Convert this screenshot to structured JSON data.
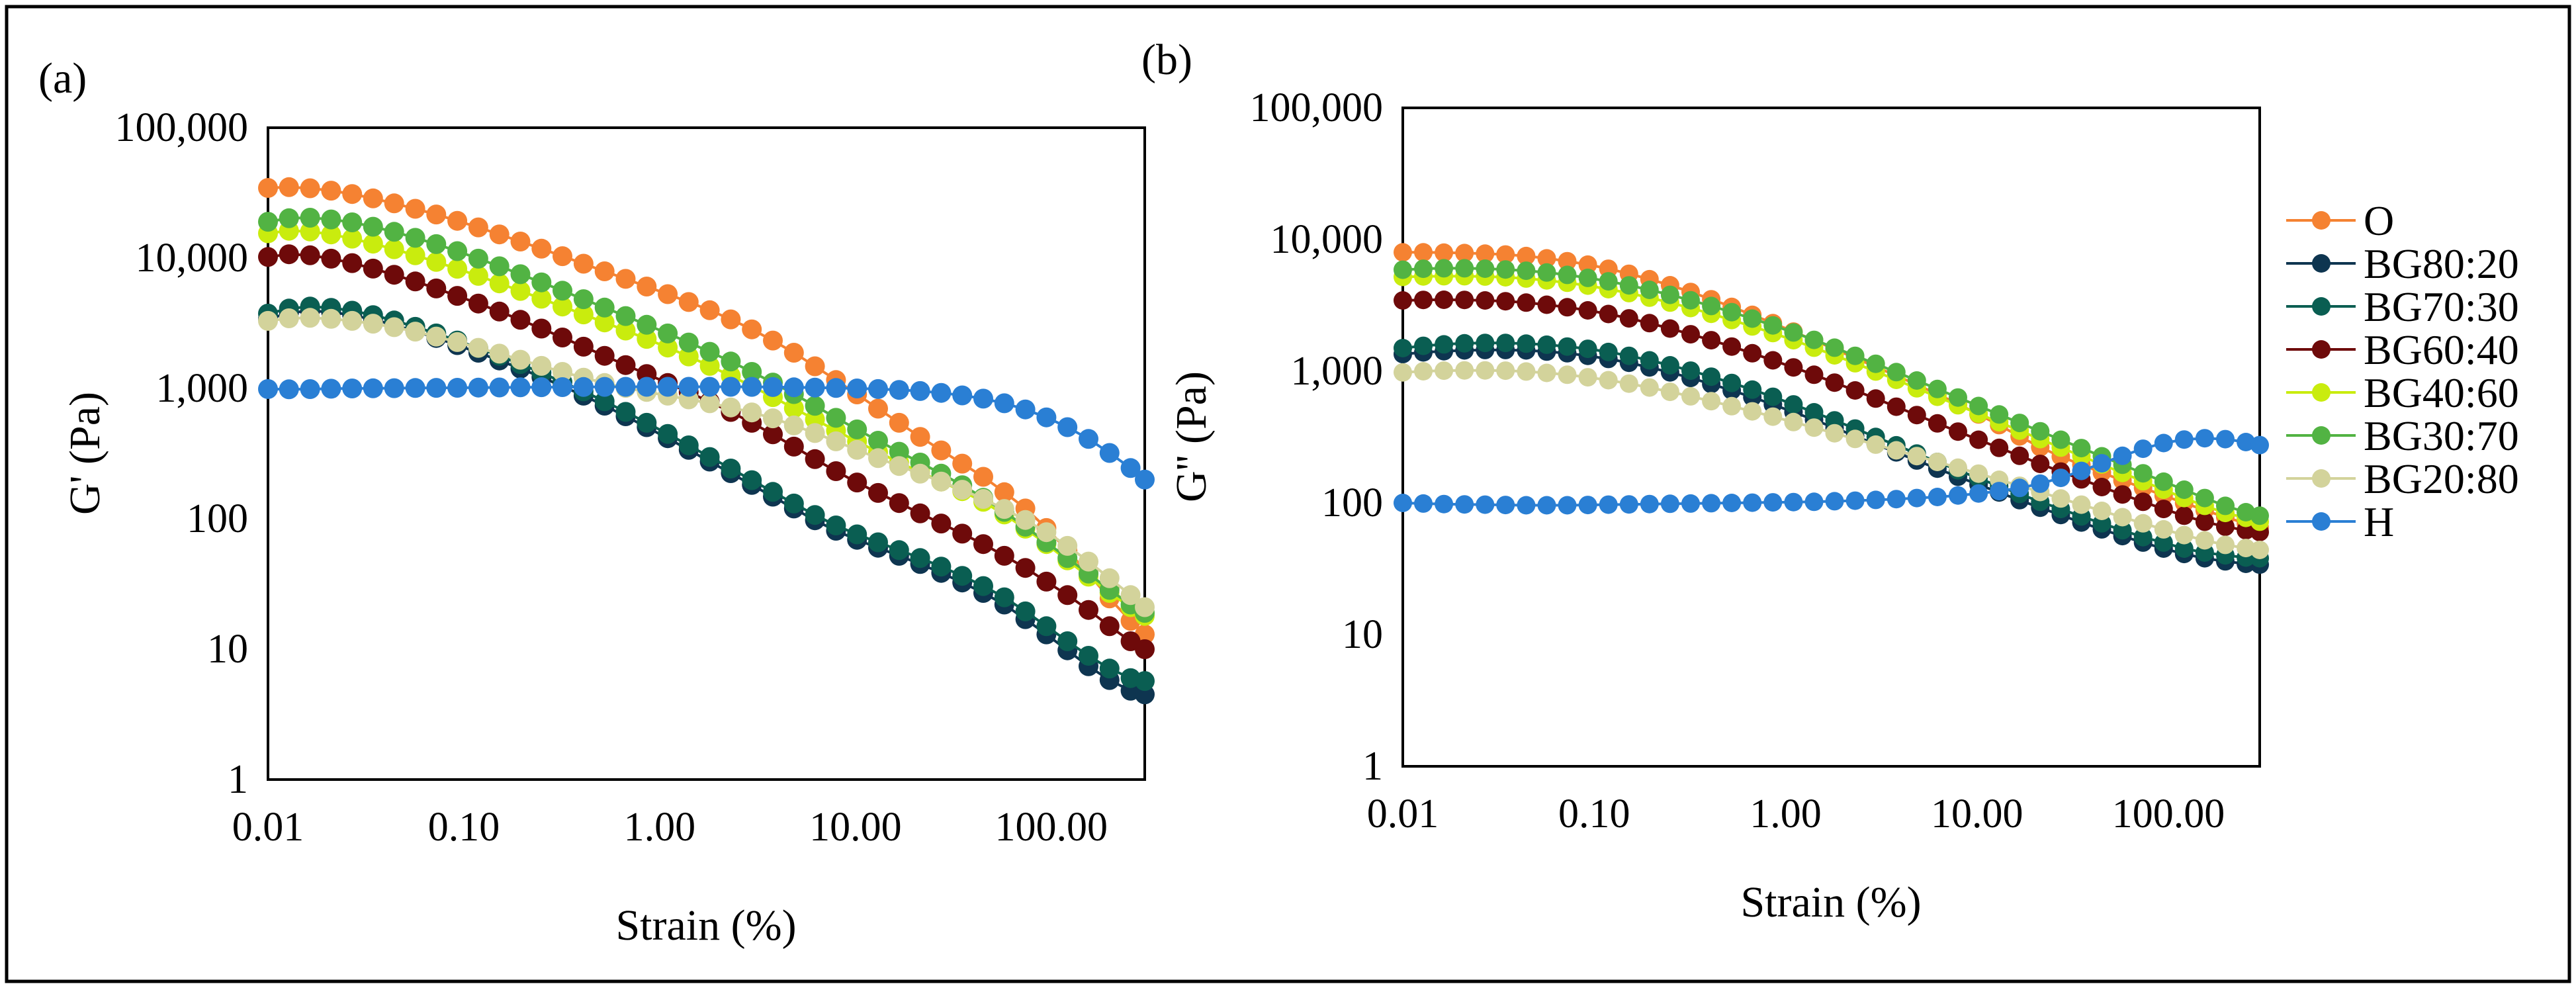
{
  "figure": {
    "panel_a_label": "(a)",
    "panel_b_label": "(b)"
  },
  "legend": {
    "items": [
      {
        "name": "O",
        "color": "#F58232"
      },
      {
        "name": "BG80:20",
        "color": "#0E3550"
      },
      {
        "name": "BG70:30",
        "color": "#0A5E52"
      },
      {
        "name": "BG60:40",
        "color": "#6E0A0A"
      },
      {
        "name": "BG40:60",
        "color": "#C9EC0E"
      },
      {
        "name": "BG30:70",
        "color": "#52B343"
      },
      {
        "name": "BG20:80",
        "color": "#D3D39B"
      },
      {
        "name": "H",
        "color": "#2A7FD4"
      }
    ]
  },
  "chart_data": [
    {
      "type": "scatter",
      "title": "",
      "xlabel": "Strain (%)",
      "ylabel": "G' (Pa)",
      "xscale": "log",
      "yscale": "log",
      "xlim": [
        0.01,
        300
      ],
      "ylim": [
        1,
        100000
      ],
      "xticks": [
        "0.01",
        "0.10",
        "1.00",
        "10.00",
        "100.00"
      ],
      "yticks": [
        "1",
        "10",
        "100",
        "1,000",
        "10,000",
        "100,000"
      ],
      "grid": false,
      "legend": "right",
      "x": [
        0.01,
        0.0128,
        0.0164,
        0.021,
        0.0269,
        0.0344,
        0.0441,
        0.0565,
        0.0723,
        0.0926,
        0.1186,
        0.1519,
        0.1945,
        0.2491,
        0.319,
        0.4086,
        0.5233,
        0.6702,
        0.8583,
        1.0992,
        1.4077,
        1.8028,
        2.3089,
        2.957,
        3.7869,
        4.8499,
        6.2112,
        7.9546,
        10.187,
        13.047,
        16.709,
        21.398,
        27.404,
        35.096,
        44.947,
        57.563,
        73.72,
        94.411,
        120.91,
        154.85,
        198.31,
        253.97,
        300.0
      ],
      "series": [
        {
          "name": "O",
          "color": "#F58232",
          "values": [
            34500,
            35000,
            34300,
            32900,
            31000,
            28700,
            26300,
            23900,
            21600,
            19300,
            17200,
            15200,
            13400,
            11800,
            10350,
            9050,
            7920,
            6930,
            6050,
            5290,
            4600,
            3980,
            3390,
            2840,
            2330,
            1880,
            1480,
            1160,
            900,
            700,
            545,
            425,
            335,
            265,
            210,
            160,
            120,
            85,
            57,
            38,
            24.5,
            16.5,
            13
          ]
        },
        {
          "name": "BG80:20",
          "color": "#0E3550",
          "values": [
            3400,
            3800,
            3950,
            3850,
            3650,
            3380,
            3070,
            2750,
            2440,
            2150,
            1880,
            1640,
            1420,
            1220,
            1040,
            880,
            738,
            612,
            505,
            415,
            338,
            275,
            224,
            182,
            148,
            120,
            97.5,
            81,
            69,
            60,
            52,
            45,
            38.5,
            32.5,
            27,
            22,
            17,
            13,
            9.8,
            7.4,
            5.8,
            4.8,
            4.5
          ]
        },
        {
          "name": "BG70:30",
          "color": "#0A5E52",
          "values": [
            3750,
            4100,
            4250,
            4150,
            3950,
            3650,
            3320,
            2970,
            2640,
            2330,
            2040,
            1780,
            1540,
            1320,
            1120,
            950,
            797,
            661,
            545,
            448,
            366,
            298,
            243,
            198,
            161,
            131,
            107,
            89,
            76,
            66,
            57.5,
            50,
            43,
            36.5,
            30.5,
            25,
            19.5,
            15,
            11.5,
            8.9,
            7.1,
            6,
            5.7
          ]
        },
        {
          "name": "BG60:40",
          "color": "#6E0A0A",
          "values": [
            10200,
            10700,
            10500,
            9900,
            9150,
            8300,
            7450,
            6620,
            5850,
            5130,
            4480,
            3890,
            3360,
            2880,
            2460,
            2090,
            1780,
            1510,
            1290,
            1100,
            935,
            790,
            660,
            545,
            445,
            358,
            287,
            232,
            190,
            158,
            132,
            110,
            92,
            77,
            64,
            52,
            42,
            33,
            26,
            20,
            15,
            11.5,
            10
          ]
        },
        {
          "name": "BG40:60",
          "color": "#C9EC0E",
          "values": [
            15500,
            16200,
            16000,
            15200,
            14100,
            12900,
            11700,
            10500,
            9350,
            8280,
            7300,
            6400,
            5600,
            4880,
            4250,
            3700,
            3210,
            2780,
            2400,
            2060,
            1760,
            1490,
            1250,
            1040,
            858,
            705,
            578,
            475,
            392,
            325,
            271,
            228,
            193,
            163,
            135,
            108,
            84,
            64,
            48,
            36,
            27,
            21,
            18
          ]
        },
        {
          "name": "BG30:70",
          "color": "#52B343",
          "values": [
            19000,
            20200,
            20400,
            19800,
            18800,
            17400,
            15900,
            14300,
            12800,
            11300,
            9900,
            8650,
            7520,
            6510,
            5620,
            4840,
            4170,
            3590,
            3080,
            2640,
            2250,
            1910,
            1610,
            1340,
            1110,
            905,
            735,
            595,
            485,
            397,
            327,
            270,
            222,
            181,
            145,
            113,
            87,
            66,
            50,
            38,
            28.5,
            22,
            19
          ]
        },
        {
          "name": "BG20:80",
          "color": "#D3D39B",
          "values": [
            3300,
            3450,
            3480,
            3420,
            3300,
            3140,
            2950,
            2730,
            2500,
            2270,
            2050,
            1850,
            1660,
            1490,
            1340,
            1210,
            1100,
            1010,
            940,
            880,
            825,
            770,
            715,
            655,
            590,
            520,
            455,
            393,
            338,
            292,
            254,
            222,
            193,
            167,
            142,
            119,
            98,
            79,
            62,
            47,
            35,
            26,
            21
          ]
        },
        {
          "name": "H",
          "color": "#2A7FD4",
          "values": [
            990,
            985,
            988,
            995,
            1000,
            1002,
            1005,
            1008,
            1010,
            1012,
            1015,
            1018,
            1020,
            1022,
            1024,
            1026,
            1028,
            1030,
            1030,
            1030,
            1030,
            1030,
            1030,
            1028,
            1025,
            1020,
            1015,
            1008,
            1000,
            990,
            975,
            955,
            925,
            885,
            835,
            770,
            690,
            600,
            505,
            410,
            320,
            245,
            200
          ]
        }
      ]
    },
    {
      "type": "scatter",
      "title": "",
      "xlabel": "Strain (%)",
      "ylabel": "G'' (Pa)",
      "xscale": "log",
      "yscale": "log",
      "xlim": [
        0.01,
        300
      ],
      "ylim": [
        1,
        100000
      ],
      "xticks": [
        "0.01",
        "0.10",
        "1.00",
        "10.00",
        "100.00"
      ],
      "yticks": [
        "1",
        "10",
        "100",
        "1,000",
        "10,000",
        "100,000"
      ],
      "grid": false,
      "legend": "right",
      "x": [
        0.01,
        0.0128,
        0.0164,
        0.021,
        0.0269,
        0.0344,
        0.0441,
        0.0565,
        0.0723,
        0.0926,
        0.1186,
        0.1519,
        0.1945,
        0.2491,
        0.319,
        0.4086,
        0.5233,
        0.6702,
        0.8583,
        1.0992,
        1.4077,
        1.8028,
        2.3089,
        2.957,
        3.7869,
        4.8499,
        6.2112,
        7.9546,
        10.187,
        13.047,
        16.709,
        21.398,
        27.404,
        35.096,
        44.947,
        57.563,
        73.72,
        94.411,
        120.91,
        154.85,
        198.31,
        253.97,
        300.0
      ],
      "series": [
        {
          "name": "O",
          "color": "#F58232",
          "values": [
            8000,
            8000,
            7950,
            7900,
            7820,
            7700,
            7500,
            7200,
            6850,
            6450,
            6000,
            5500,
            5000,
            4500,
            4000,
            3520,
            3080,
            2680,
            2320,
            2000,
            1720,
            1470,
            1260,
            1080,
            925,
            790,
            670,
            565,
            470,
            390,
            320,
            265,
            225,
            195,
            170,
            148,
            130,
            114,
            100,
            88,
            78,
            70,
            65
          ]
        },
        {
          "name": "BG80:20",
          "color": "#0E3550",
          "values": [
            1350,
            1390,
            1420,
            1440,
            1450,
            1450,
            1440,
            1410,
            1370,
            1310,
            1240,
            1160,
            1070,
            980,
            890,
            800,
            715,
            635,
            560,
            490,
            428,
            372,
            322,
            279,
            242,
            210,
            182,
            158,
            138,
            120,
            105,
            92,
            81,
            71,
            63,
            56,
            50,
            45,
            41,
            38,
            36,
            34.5,
            34
          ]
        },
        {
          "name": "BG70:30",
          "color": "#0A5E52",
          "values": [
            1500,
            1560,
            1600,
            1630,
            1640,
            1640,
            1620,
            1590,
            1540,
            1480,
            1400,
            1310,
            1210,
            1110,
            1010,
            910,
            815,
            725,
            640,
            560,
            488,
            424,
            367,
            317,
            274,
            237,
            205,
            177,
            154,
            134,
            117,
            102,
            90,
            79,
            70,
            62,
            55,
            50,
            45,
            42,
            40,
            38.5,
            38
          ]
        },
        {
          "name": "BG60:40",
          "color": "#6E0A0A",
          "values": [
            3450,
            3480,
            3490,
            3480,
            3450,
            3400,
            3320,
            3200,
            3060,
            2900,
            2720,
            2520,
            2320,
            2110,
            1910,
            1720,
            1540,
            1370,
            1210,
            1070,
            940,
            820,
            715,
            620,
            538,
            465,
            402,
            348,
            302,
            262,
            228,
            198,
            173,
            151,
            132,
            116,
            102,
            90,
            80,
            72,
            66,
            62,
            60
          ]
        },
        {
          "name": "BG40:60",
          "color": "#C9EC0E",
          "values": [
            5200,
            5250,
            5270,
            5270,
            5240,
            5170,
            5060,
            4900,
            4700,
            4470,
            4200,
            3920,
            3620,
            3320,
            3020,
            2730,
            2450,
            2190,
            1950,
            1720,
            1510,
            1320,
            1150,
            995,
            860,
            742,
            640,
            552,
            476,
            410,
            354,
            305,
            263,
            227,
            196,
            169,
            146,
            126,
            109,
            95,
            84,
            77,
            72
          ]
        },
        {
          "name": "BG30:70",
          "color": "#52B343",
          "values": [
            5900,
            6000,
            6050,
            6050,
            6010,
            5930,
            5800,
            5620,
            5390,
            5120,
            4820,
            4490,
            4150,
            3800,
            3460,
            3130,
            2810,
            2510,
            2230,
            1970,
            1730,
            1510,
            1310,
            1140,
            985,
            850,
            733,
            632,
            545,
            470,
            405,
            350,
            302,
            261,
            226,
            195,
            168,
            145,
            126,
            109,
            95,
            85,
            80
          ]
        },
        {
          "name": "BG20:80",
          "color": "#D3D39B",
          "values": [
            980,
            1000,
            1010,
            1015,
            1015,
            1010,
            995,
            972,
            940,
            900,
            855,
            805,
            752,
            698,
            645,
            593,
            543,
            496,
            452,
            411,
            373,
            338,
            306,
            277,
            251,
            227,
            205,
            185,
            167,
            150,
            135,
            121,
            108,
            97,
            87,
            78,
            70,
            63,
            57,
            52,
            48,
            45.5,
            44
          ]
        },
        {
          "name": "H",
          "color": "#2A7FD4",
          "values": [
            100,
            99,
            98,
            97.5,
            97,
            96.5,
            96,
            96,
            96,
            96.5,
            97,
            97.5,
            98,
            98.5,
            99,
            99.5,
            100,
            100.5,
            101,
            101.5,
            102,
            103,
            104,
            105.5,
            107,
            109,
            111,
            114,
            118,
            123,
            130,
            140,
            155,
            175,
            200,
            228,
            258,
            285,
            303,
            310,
            305,
            290,
            275
          ]
        }
      ]
    }
  ]
}
